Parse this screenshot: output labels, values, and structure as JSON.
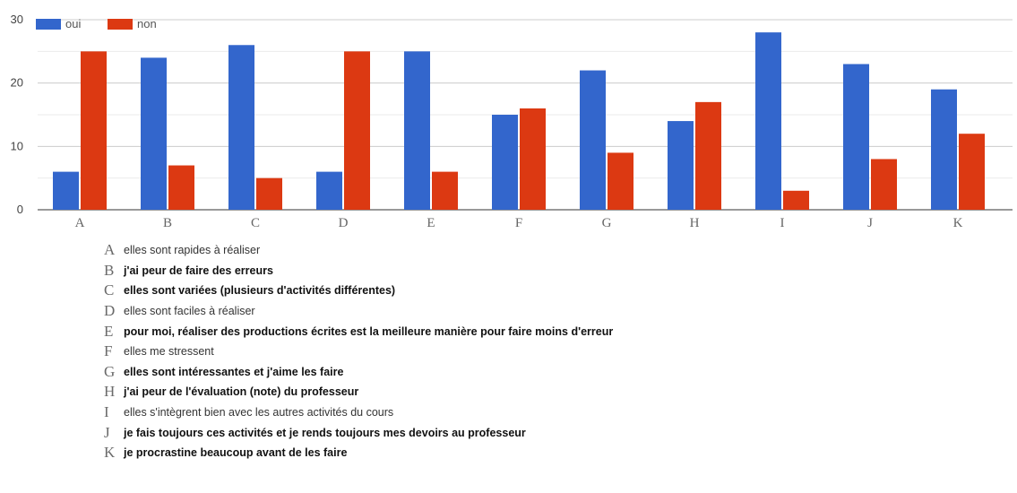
{
  "chart_data": {
    "type": "bar",
    "categories": [
      "A",
      "B",
      "C",
      "D",
      "E",
      "F",
      "G",
      "H",
      "I",
      "J",
      "K"
    ],
    "series": [
      {
        "name": "oui",
        "color": "#3366cc",
        "values": [
          6,
          24,
          26,
          6,
          25,
          15,
          22,
          14,
          28,
          23,
          19
        ]
      },
      {
        "name": "non",
        "color": "#dc3912",
        "values": [
          25,
          7,
          5,
          25,
          6,
          16,
          9,
          17,
          3,
          8,
          12
        ]
      }
    ],
    "ylim": [
      0,
      30
    ],
    "yticks": [
      0,
      10,
      20,
      30
    ],
    "grid": true,
    "legend_position": "top-left"
  },
  "descriptions": [
    {
      "letter": "A",
      "text": "elles sont rapides à réaliser",
      "bold": false
    },
    {
      "letter": "B",
      "text": "j'ai peur de faire des erreurs",
      "bold": true
    },
    {
      "letter": "C",
      "text": "elles sont variées (plusieurs d'activités différentes)",
      "bold": true
    },
    {
      "letter": "D",
      "text": "elles sont faciles à réaliser",
      "bold": false
    },
    {
      "letter": "E",
      "text": "pour moi, réaliser des productions écrites est la meilleure manière pour faire moins d'erreur",
      "bold": true
    },
    {
      "letter": "F",
      "text": "elles me stressent",
      "bold": false
    },
    {
      "letter": "G",
      "text": "elles sont intéressantes et j'aime les faire",
      "bold": true
    },
    {
      "letter": "H",
      "text": "j'ai peur de l'évaluation (note) du professeur",
      "bold": true
    },
    {
      "letter": "I",
      "text": "elles s'intègrent bien avec les autres activités du cours",
      "bold": false
    },
    {
      "letter": "J",
      "text": "je fais toujours ces activités et je rends toujours mes devoirs au professeur",
      "bold": true
    },
    {
      "letter": "K",
      "text": "je procrastine beaucoup avant de les faire",
      "bold": true
    }
  ]
}
